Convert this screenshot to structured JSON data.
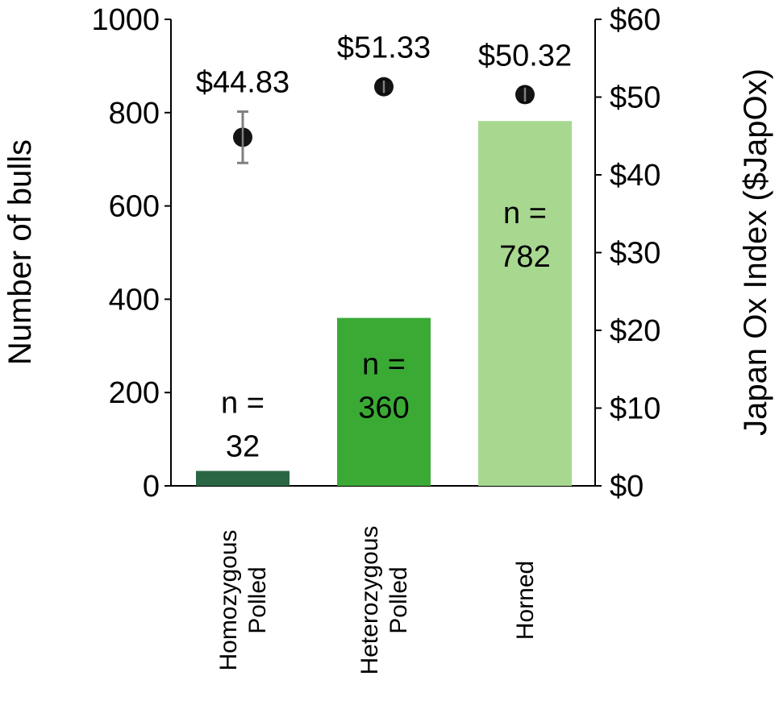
{
  "chart_data": {
    "type": "bar",
    "categories": [
      [
        "Homozygous",
        "Polled"
      ],
      [
        "Heterozygous",
        "Polled"
      ],
      [
        "Horned"
      ]
    ],
    "series": [
      {
        "values": [
          32,
          360,
          782
        ],
        "labels": [
          [
            "n =",
            "32"
          ],
          [
            "n =",
            "360"
          ],
          [
            "n =",
            "782"
          ]
        ],
        "colors": [
          "#2a6644",
          "#3aaa35",
          "#a8d890"
        ]
      },
      {
        "type": "scatter",
        "values": [
          44.83,
          51.33,
          50.32
        ],
        "error": [
          3.3,
          0.8,
          0.9
        ],
        "labels": [
          "$44.83",
          "$51.33",
          "$50.32"
        ],
        "color": "#000000",
        "error_color": "#808080"
      }
    ],
    "ylabel": "Number of bulls",
    "y2label": "Japan Ox Index ($JapOx)",
    "ylim": [
      0,
      1000
    ],
    "y2lim": [
      0,
      60
    ],
    "yticks": [
      "0",
      "200",
      "400",
      "600",
      "800",
      "1000"
    ],
    "y2ticks": [
      "$0",
      "$10",
      "$20",
      "$30",
      "$40",
      "$50",
      "$60"
    ],
    "grid": false,
    "legend": "none"
  }
}
